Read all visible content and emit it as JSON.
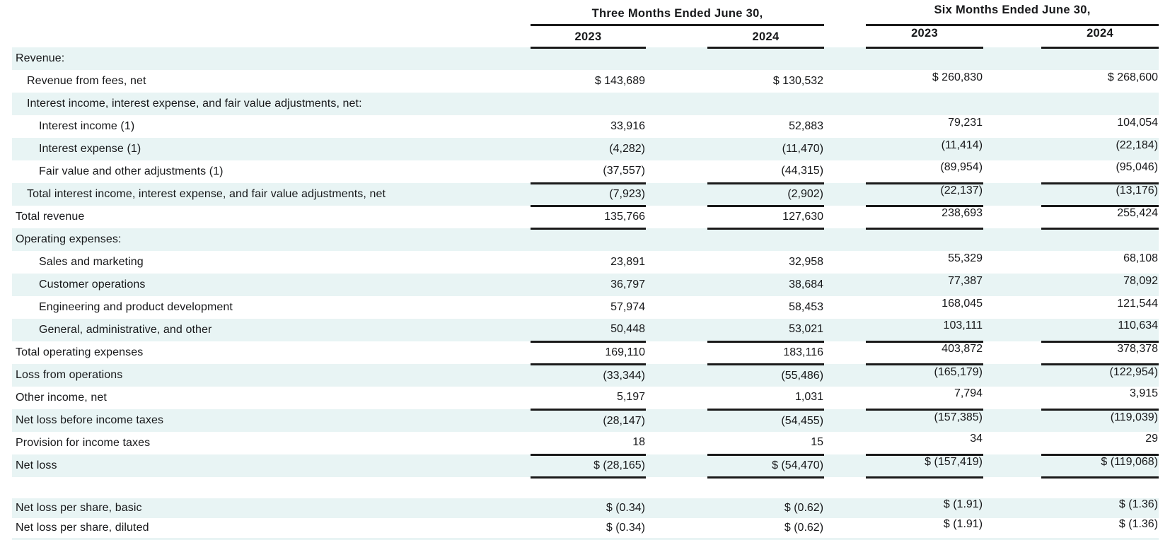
{
  "colors": {
    "band": "#e8f4f4",
    "text": "#17181a",
    "rule": "#1a1a1a"
  },
  "table": {
    "column_groups": [
      {
        "title": "Three Months Ended June 30,",
        "years": [
          "2023",
          "2024"
        ]
      },
      {
        "title": "Six Months Ended June 30,",
        "years": [
          "2023",
          "2024"
        ]
      }
    ],
    "rows": [
      {
        "label": "Revenue:",
        "indent": 0,
        "band": true
      },
      {
        "label": "Revenue from fees, net",
        "indent": 1,
        "values": [
          "$ 143,689",
          "$ 130,532",
          "$ 260,830",
          "$ 268,600"
        ]
      },
      {
        "label": "Interest income, interest expense, and fair value adjustments, net:",
        "indent": 1,
        "band": true
      },
      {
        "label": "Interest income (1)",
        "indent": 2,
        "values": [
          "33,916",
          "52,883",
          "79,231",
          "104,054"
        ]
      },
      {
        "label": "Interest expense (1)",
        "indent": 2,
        "values": [
          "(4,282)",
          "(11,470)",
          "(11,414)",
          "(22,184)"
        ],
        "band": true
      },
      {
        "label": "Fair value and other adjustments (1)",
        "indent": 2,
        "values": [
          "(37,557)",
          "(44,315)",
          "(89,954)",
          "(95,046)"
        ],
        "rule": true
      },
      {
        "label": "Total interest income, interest expense, and fair value adjustments, net",
        "indent": 1,
        "values": [
          "(7,923)",
          "(2,902)",
          "(22,137)",
          "(13,176)"
        ],
        "band": true,
        "rule": true
      },
      {
        "label": "Total revenue",
        "indent": 0,
        "values": [
          "135,766",
          "127,630",
          "238,693",
          "255,424"
        ],
        "rule": true
      },
      {
        "label": "Operating expenses:",
        "indent": 0,
        "band": true
      },
      {
        "label": "Sales and marketing",
        "indent": 2,
        "values": [
          "23,891",
          "32,958",
          "55,329",
          "68,108"
        ]
      },
      {
        "label": "Customer operations",
        "indent": 2,
        "values": [
          "36,797",
          "38,684",
          "77,387",
          "78,092"
        ],
        "band": true
      },
      {
        "label": "Engineering and product development",
        "indent": 2,
        "values": [
          "57,974",
          "58,453",
          "168,045",
          "121,544"
        ]
      },
      {
        "label": "General, administrative, and other",
        "indent": 2,
        "values": [
          "50,448",
          "53,021",
          "103,111",
          "110,634"
        ],
        "band": true,
        "rule": true
      },
      {
        "label": "Total operating expenses",
        "indent": 0,
        "values": [
          "169,110",
          "183,116",
          "403,872",
          "378,378"
        ],
        "rule": true
      },
      {
        "label": "Loss from operations",
        "indent": 0,
        "values": [
          "(33,344)",
          "(55,486)",
          "(165,179)",
          "(122,954)"
        ],
        "band": true
      },
      {
        "label": "Other income, net",
        "indent": 0,
        "values": [
          "5,197",
          "1,031",
          "7,794",
          "3,915"
        ],
        "rule": true
      },
      {
        "label": "Net loss before income taxes",
        "indent": 0,
        "values": [
          "(28,147)",
          "(54,455)",
          "(157,385)",
          "(119,039)"
        ],
        "band": true
      },
      {
        "label": "Provision for income taxes",
        "indent": 0,
        "values": [
          "18",
          "15",
          "34",
          "29"
        ],
        "rule": true
      },
      {
        "label": "Net loss",
        "indent": 0,
        "values": [
          "$ (28,165)",
          "$ (54,470)",
          "$ (157,419)",
          "$ (119,068)"
        ],
        "band": true,
        "rule": true
      },
      {
        "type": "spacer"
      },
      {
        "label": "Net loss per share, basic",
        "indent": 0,
        "values": [
          "$ (0.34)",
          "$ (0.62)",
          "$ (1.91)",
          "$ (1.36)"
        ],
        "band": true,
        "type": "pershare"
      },
      {
        "label": "Net loss per share, diluted",
        "indent": 0,
        "values": [
          "$ (0.34)",
          "$ (0.62)",
          "$ (1.91)",
          "$ (1.36)"
        ],
        "type": "pershare"
      },
      {
        "type": "sliver",
        "band": true
      }
    ]
  }
}
